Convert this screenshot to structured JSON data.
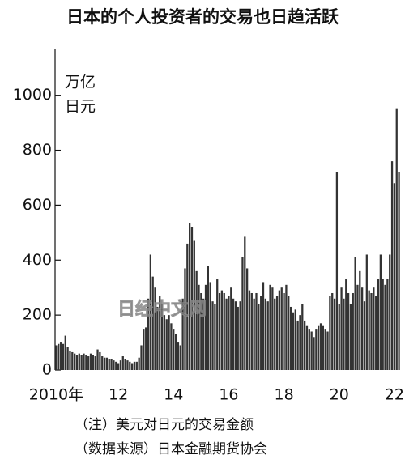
{
  "chart_data": {
    "type": "bar",
    "title": "日本的个人投资者的交易也日趋活跃",
    "y_unit": [
      "万亿",
      "日元"
    ],
    "watermark": "日经中文网",
    "notes": [
      "（注）美元对日元的交易金额",
      "（数据来源）日本金融期货协会"
    ],
    "color": "#333333",
    "ylim": [
      0,
      1170
    ],
    "yticks": [
      0,
      200,
      400,
      600,
      800,
      1000
    ],
    "categories": [
      "2010年",
      null,
      null,
      null,
      null,
      null,
      null,
      null,
      null,
      null,
      null,
      null,
      null,
      null,
      null,
      null,
      null,
      null,
      null,
      null,
      null,
      null,
      null,
      null,
      "12",
      null,
      null,
      null,
      null,
      null,
      null,
      null,
      null,
      null,
      null,
      null,
      null,
      null,
      null,
      null,
      null,
      null,
      null,
      null,
      null,
      null,
      null,
      null,
      "14",
      null,
      null,
      null,
      null,
      null,
      null,
      null,
      null,
      null,
      null,
      null,
      null,
      null,
      null,
      null,
      null,
      null,
      null,
      null,
      null,
      null,
      null,
      null,
      "16",
      null,
      null,
      null,
      null,
      null,
      null,
      null,
      null,
      null,
      null,
      null,
      null,
      null,
      null,
      null,
      null,
      null,
      null,
      null,
      null,
      null,
      null,
      null,
      "18",
      null,
      null,
      null,
      null,
      null,
      null,
      null,
      null,
      null,
      null,
      null,
      null,
      null,
      null,
      null,
      null,
      null,
      null,
      null,
      null,
      null,
      null,
      null,
      "20",
      null,
      null,
      null,
      null,
      null,
      null,
      null,
      null,
      null,
      null,
      null,
      null,
      null,
      null,
      null,
      null,
      null,
      null,
      null,
      null,
      null,
      null,
      null,
      "22",
      null,
      null,
      null,
      null,
      null
    ],
    "values": [
      90,
      95,
      100,
      95,
      125,
      85,
      70,
      65,
      60,
      55,
      60,
      55,
      60,
      55,
      50,
      60,
      55,
      50,
      75,
      65,
      50,
      45,
      45,
      40,
      40,
      35,
      30,
      25,
      35,
      50,
      40,
      35,
      30,
      25,
      30,
      30,
      45,
      90,
      150,
      155,
      260,
      420,
      340,
      300,
      230,
      270,
      240,
      200,
      185,
      200,
      170,
      150,
      130,
      100,
      90,
      260,
      370,
      460,
      535,
      520,
      470,
      360,
      310,
      280,
      260,
      310,
      380,
      320,
      250,
      240,
      330,
      280,
      290,
      280,
      260,
      270,
      300,
      260,
      250,
      230,
      250,
      410,
      485,
      370,
      290,
      280,
      260,
      280,
      240,
      270,
      320,
      260,
      250,
      310,
      300,
      260,
      270,
      290,
      300,
      280,
      310,
      270,
      230,
      210,
      220,
      180,
      200,
      240,
      180,
      160,
      150,
      140,
      120,
      150,
      160,
      170,
      160,
      150,
      140,
      270,
      280,
      260,
      720,
      240,
      300,
      260,
      330,
      280,
      240,
      280,
      410,
      310,
      360,
      300,
      250,
      420,
      290,
      280,
      300,
      270,
      330,
      420,
      330,
      310,
      330,
      420,
      760,
      680,
      950,
      720
    ]
  }
}
